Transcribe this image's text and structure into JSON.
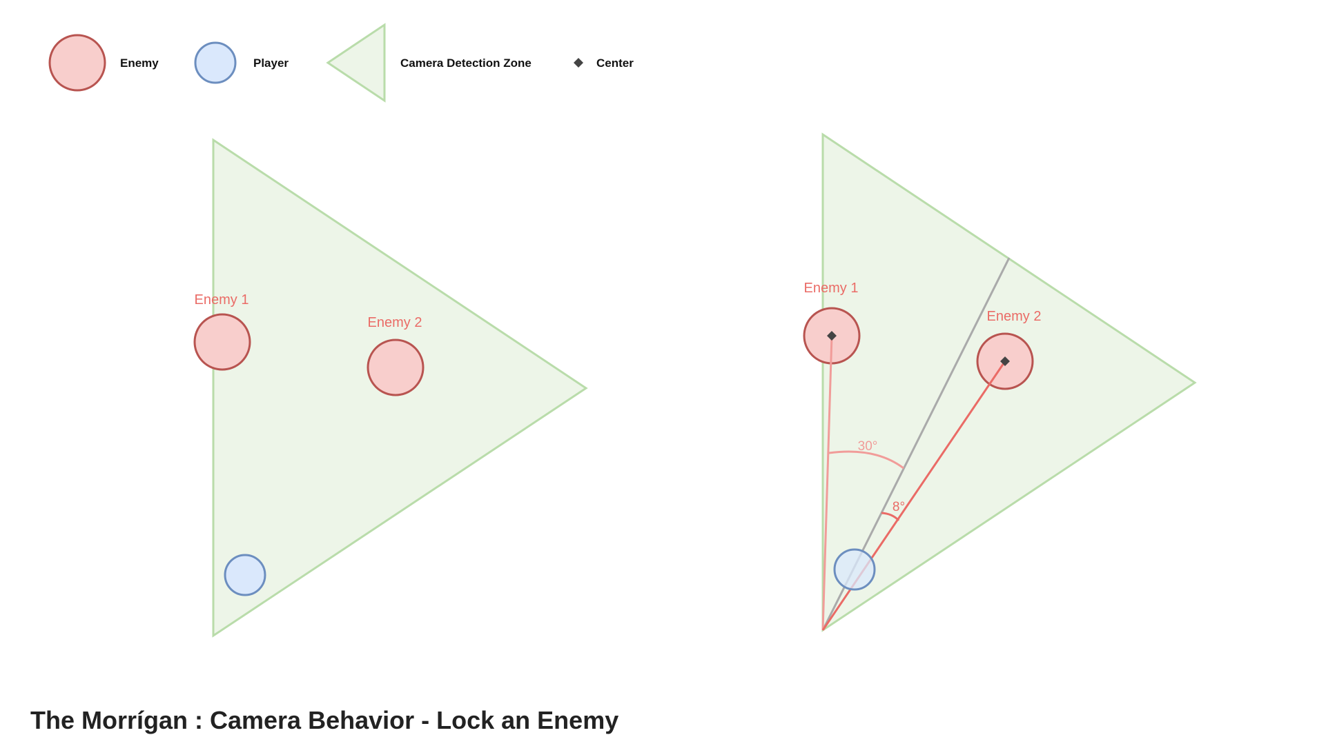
{
  "legend": {
    "enemy_label": "Enemy",
    "player_label": "Player",
    "zone_label": "Camera Detection Zone",
    "center_label": "Center"
  },
  "left_panel": {
    "enemy1_label": "Enemy 1",
    "enemy2_label": "Enemy 2"
  },
  "right_panel": {
    "enemy1_label": "Enemy 1",
    "enemy2_label": "Enemy 2",
    "angle_enemy1": "30°",
    "angle_enemy2": "8°"
  },
  "title": "The Morrígan : Camera Behavior - Lock an Enemy",
  "colors": {
    "enemy_fill": "#f8cecc",
    "enemy_stroke": "#b85450",
    "player_fill": "#dae8fc",
    "player_stroke": "#6c8ebf",
    "zone_fill": "#edf5e8",
    "zone_stroke": "#b9dcaa",
    "enemy_label": "#ea6b66",
    "center_marker": "#444444",
    "direction_line": "#aaaaaa",
    "line_enemy1": "#f19c99",
    "line_enemy2": "#ea6b66"
  }
}
